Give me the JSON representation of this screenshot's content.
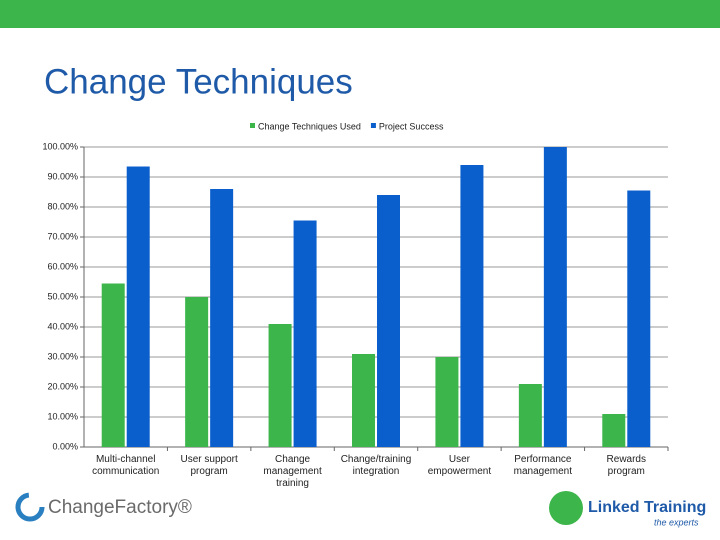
{
  "chart_data": {
    "type": "bar",
    "title": "Change Techniques",
    "categories": [
      "Multi-channel communication",
      "User support program",
      "Change management training",
      "Change/training integration",
      "User empowerment",
      "Performance management",
      "Rewards program"
    ],
    "series": [
      {
        "name": "Change Techniques Used",
        "color": "#3cb54a",
        "values": [
          54.5,
          50,
          41,
          31,
          30,
          21,
          11
        ]
      },
      {
        "name": "Project Success",
        "color": "#0b5fcc",
        "values": [
          93.5,
          86,
          75.5,
          84,
          94,
          100,
          85.5
        ]
      }
    ],
    "ylim": [
      0,
      100
    ],
    "yticks": [
      {
        "value": 0,
        "label": "0.00%"
      },
      {
        "value": 10,
        "label": "10.00%"
      },
      {
        "value": 20,
        "label": "20.00%"
      },
      {
        "value": 30,
        "label": "30.00%"
      },
      {
        "value": 40,
        "label": "40.00%"
      },
      {
        "value": 50,
        "label": "50.00%"
      },
      {
        "value": 60,
        "label": "60.00%"
      },
      {
        "value": 70,
        "label": "70.00%"
      },
      {
        "value": 80,
        "label": "80.00%"
      },
      {
        "value": 90,
        "label": "90.00%"
      },
      {
        "value": 100,
        "label": "100.00%"
      }
    ],
    "grid": true,
    "legend": "top"
  },
  "footer": {
    "left_logo": "ChangeFactory®",
    "right_logo": "Linked Training",
    "right_tagline": "the experts"
  }
}
